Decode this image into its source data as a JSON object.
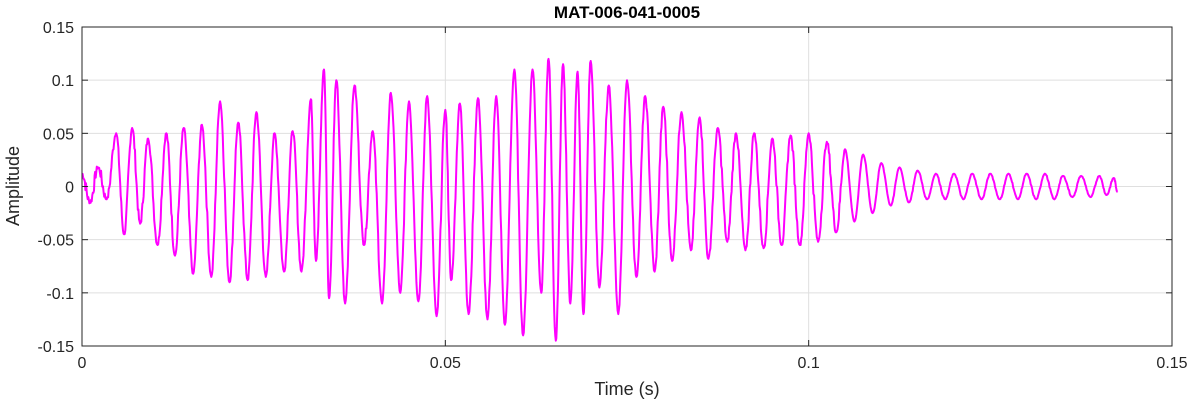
{
  "chart_data": {
    "type": "line",
    "title": "MAT-006-041-0005",
    "xlabel": "Time (s)",
    "ylabel": "Amplitude",
    "xlim": [
      0,
      0.15
    ],
    "ylim": [
      -0.15,
      0.15
    ],
    "grid": true,
    "x_ticks": [
      0,
      0.05,
      0.1,
      0.15
    ],
    "x_tick_labels": [
      "0",
      "0.05",
      "0.1",
      "0.15"
    ],
    "y_ticks": [
      -0.15,
      -0.1,
      -0.05,
      0,
      0.05,
      0.1,
      0.15
    ],
    "y_tick_labels": [
      "-0.15",
      "-0.1",
      "-0.05",
      "0",
      "0.05",
      "0.1",
      "0.15"
    ],
    "series": [
      {
        "color": "#ff00ff",
        "line_width": 2,
        "x": [
          0.0,
          0.0011,
          0.0022,
          0.0034,
          0.0047,
          0.0058,
          0.0069,
          0.008,
          0.0091,
          0.0104,
          0.0116,
          0.0128,
          0.014,
          0.0153,
          0.0165,
          0.0178,
          0.019,
          0.0203,
          0.0215,
          0.0228,
          0.024,
          0.0253,
          0.0265,
          0.0278,
          0.029,
          0.0302,
          0.0315,
          0.0322,
          0.0333,
          0.034,
          0.035,
          0.0362,
          0.0375,
          0.0388,
          0.04,
          0.0413,
          0.0425,
          0.0438,
          0.045,
          0.0463,
          0.0475,
          0.0488,
          0.05,
          0.0508,
          0.052,
          0.0532,
          0.0545,
          0.0558,
          0.057,
          0.0582,
          0.0595,
          0.0607,
          0.062,
          0.0632,
          0.0642,
          0.0652,
          0.0662,
          0.0672,
          0.0682,
          0.069,
          0.07,
          0.0712,
          0.0725,
          0.0738,
          0.075,
          0.0763,
          0.0775,
          0.0788,
          0.08,
          0.0812,
          0.0825,
          0.0838,
          0.085,
          0.0862,
          0.0875,
          0.0888,
          0.09,
          0.0913,
          0.0925,
          0.0938,
          0.095,
          0.0963,
          0.0975,
          0.0988,
          0.1,
          0.1013,
          0.1025,
          0.1038,
          0.105,
          0.1063,
          0.1075,
          0.1088,
          0.11,
          0.1113,
          0.1125,
          0.1138,
          0.115,
          0.1163,
          0.1175,
          0.1188,
          0.12,
          0.1213,
          0.1225,
          0.1238,
          0.125,
          0.1263,
          0.1275,
          0.1288,
          0.13,
          0.1313,
          0.1325,
          0.1338,
          0.135,
          0.1363,
          0.1375,
          0.1388,
          0.14,
          0.141,
          0.142,
          0.1425
        ],
        "y": [
          0.012,
          -0.015,
          0.018,
          -0.012,
          0.05,
          -0.045,
          0.055,
          -0.035,
          0.045,
          -0.055,
          0.05,
          -0.065,
          0.055,
          -0.082,
          0.058,
          -0.085,
          0.08,
          -0.09,
          0.06,
          -0.088,
          0.07,
          -0.085,
          0.05,
          -0.08,
          0.052,
          -0.08,
          0.082,
          -0.07,
          0.11,
          -0.105,
          0.1,
          -0.11,
          0.095,
          -0.055,
          0.052,
          -0.11,
          0.088,
          -0.1,
          0.08,
          -0.108,
          0.085,
          -0.122,
          0.072,
          -0.088,
          0.078,
          -0.12,
          0.083,
          -0.125,
          0.085,
          -0.13,
          0.11,
          -0.14,
          0.11,
          -0.1,
          0.12,
          -0.145,
          0.115,
          -0.11,
          0.108,
          -0.12,
          0.118,
          -0.095,
          0.095,
          -0.12,
          0.1,
          -0.085,
          0.085,
          -0.08,
          0.075,
          -0.07,
          0.07,
          -0.06,
          0.065,
          -0.068,
          0.055,
          -0.052,
          0.05,
          -0.06,
          0.05,
          -0.058,
          0.045,
          -0.055,
          0.048,
          -0.055,
          0.05,
          -0.052,
          0.042,
          -0.043,
          0.035,
          -0.033,
          0.03,
          -0.025,
          0.022,
          -0.018,
          0.018,
          -0.015,
          0.015,
          -0.012,
          0.012,
          -0.012,
          0.012,
          -0.012,
          0.012,
          -0.012,
          0.012,
          -0.012,
          0.012,
          -0.012,
          0.012,
          -0.012,
          0.012,
          -0.012,
          0.01,
          -0.01,
          0.01,
          -0.01,
          0.01,
          -0.008,
          0.008,
          -0.005
        ]
      }
    ]
  }
}
